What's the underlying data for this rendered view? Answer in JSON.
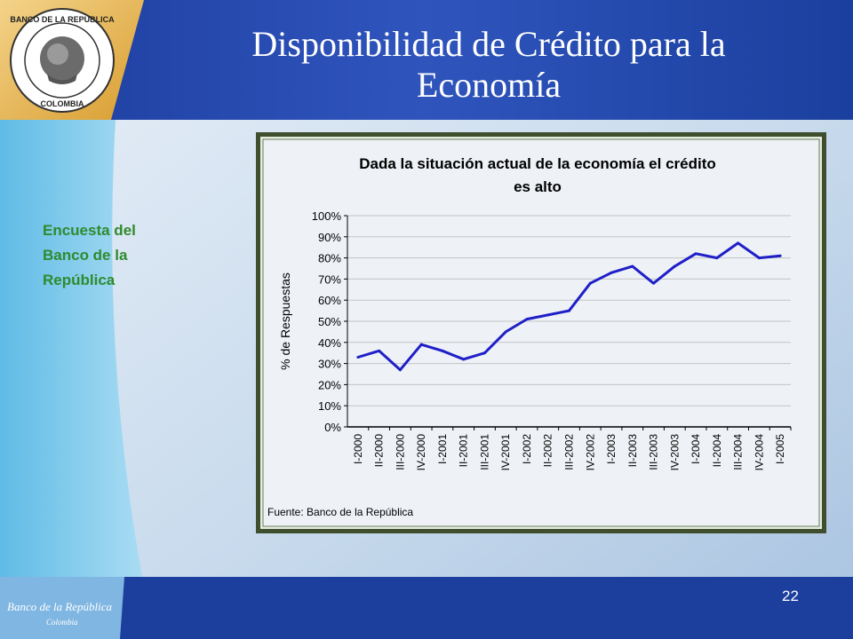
{
  "slide": {
    "title_line1": "Disponibilidad de Crédito para la",
    "title_line2": "Economía",
    "side_text": [
      "Encuesta del",
      "Banco de la",
      "República"
    ],
    "page_number": "22",
    "logo_seal_text": [
      "BANCO DE LA REPUBLICA",
      "COLOMBIA"
    ],
    "footer_logo_text": [
      "Banco de la República",
      "Colombia"
    ],
    "colors": {
      "header_blue": "#2a4aa8",
      "gold": "#e6b24a",
      "side_text_green": "#2e8b2e",
      "chart_line": "#1f1fc8",
      "chart_border": "#3f4f2e"
    }
  },
  "chart_data": {
    "type": "line",
    "title": "Dada la situación actual de la economía el crédito es alto",
    "title_lines": [
      "Dada la situación actual de la economía el crédito",
      "es alto"
    ],
    "xlabel": "",
    "ylabel": "% de Respuestas",
    "ylim": [
      0,
      100
    ],
    "yticks": [
      "0%",
      "10%",
      "20%",
      "30%",
      "40%",
      "50%",
      "60%",
      "70%",
      "80%",
      "90%",
      "100%"
    ],
    "grid": true,
    "legend": "none",
    "categories": [
      "I-2000",
      "II-2000",
      "III-2000",
      "IV-2000",
      "I-2001",
      "II-2001",
      "III-2001",
      "IV-2001",
      "I-2002",
      "II-2002",
      "III-2002",
      "IV-2002",
      "I-2003",
      "II-2003",
      "III-2003",
      "IV-2003",
      "I-2004",
      "II-2004",
      "III-2004",
      "IV-2004",
      "I-2005"
    ],
    "series": [
      {
        "values": [
          33,
          36,
          27,
          39,
          36,
          32,
          35,
          45,
          51,
          53,
          55,
          68,
          73,
          76,
          68,
          76,
          82,
          80,
          87,
          80,
          81
        ]
      }
    ],
    "source": "Fuente: Banco de la República"
  }
}
